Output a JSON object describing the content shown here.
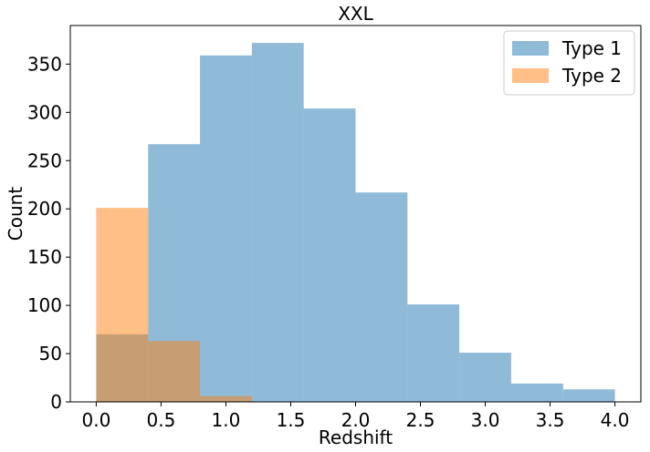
{
  "chart_data": {
    "type": "bar",
    "title": "XXL",
    "xlabel": "Redshift",
    "ylabel": "Count",
    "xlim": [
      -0.2,
      4.2
    ],
    "ylim": [
      0,
      390
    ],
    "bin_edges": [
      0.0,
      0.4,
      0.8,
      1.2,
      1.6,
      2.0,
      2.4,
      2.8,
      3.2,
      3.6,
      4.0
    ],
    "series": [
      {
        "name": "Type 1",
        "color": "#1f77b4",
        "alpha": 0.5,
        "values": [
          70,
          267,
          359,
          372,
          304,
          217,
          101,
          51,
          19,
          13
        ]
      },
      {
        "name": "Type 2",
        "color": "#ff7f0e",
        "alpha": 0.5,
        "values": [
          201,
          63,
          6,
          0,
          0,
          0,
          0,
          0,
          0,
          0
        ]
      }
    ],
    "x_ticks": [
      "0.0",
      "0.5",
      "1.0",
      "1.5",
      "2.0",
      "2.5",
      "3.0",
      "3.5",
      "4.0"
    ],
    "y_ticks": [
      "0",
      "50",
      "100",
      "150",
      "200",
      "250",
      "300",
      "350"
    ],
    "legend_position": "top-right",
    "grid": false
  }
}
